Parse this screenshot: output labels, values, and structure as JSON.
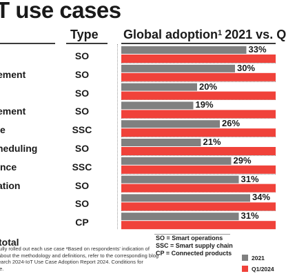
{
  "title": "T use cases",
  "headers": {
    "type": "Type",
    "adoption_pre": "Global adoption",
    "adoption_sup": "1",
    "adoption_post": "2021 vs. Q"
  },
  "chart_data": {
    "type": "bar",
    "orientation": "horizontal",
    "categories": [
      "",
      "ement",
      "",
      "ement",
      "e",
      "heduling",
      "nce",
      "ation",
      "",
      ""
    ],
    "types": [
      "SO",
      "SO",
      "SO",
      "SO",
      "SSC",
      "SO",
      "SSC",
      "SO",
      "SO",
      "CP"
    ],
    "series": [
      {
        "name": "2021",
        "color": "#808080",
        "values": [
          33,
          30,
          20,
          19,
          26,
          21,
          29,
          31,
          34,
          31
        ]
      },
      {
        "name": "Q1/2024",
        "color": "#f0423a",
        "values": [
          null,
          null,
          null,
          null,
          null,
          null,
          null,
          null,
          null,
          null
        ]
      }
    ],
    "data_labels": [
      "33%",
      "30%",
      "20%",
      "19%",
      "26%",
      "21%",
      "29%",
      "31%",
      "34%",
      "31%"
    ],
    "grid": false,
    "legend_placement": "bottom-right"
  },
  "total_label": "total",
  "footnote_lines": [
    "fully rolled out each use case ²Based on respondents' indication of",
    "about the methodology and definitions, refer to the corresponding blog",
    "earch 2024-IoT Use Case Adoption Report 2024. Conditions for",
    "te."
  ],
  "key": [
    "SO = Smart operations",
    "SSC = Smart supply chain",
    "CP = Connected products"
  ],
  "legend": [
    "2021",
    "Q1/2024"
  ]
}
